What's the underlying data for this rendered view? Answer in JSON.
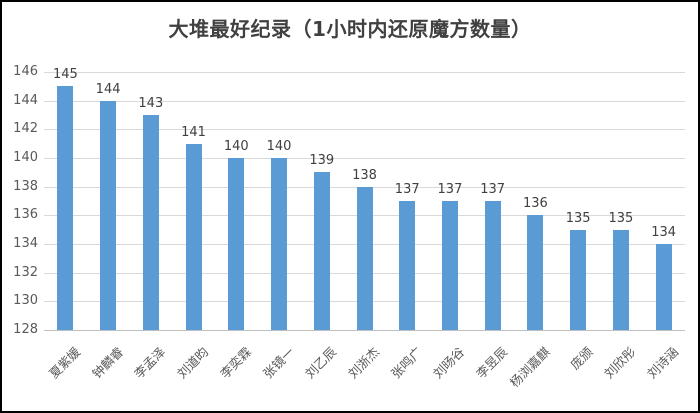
{
  "window": {
    "background": "#ffffff",
    "border_color": "#000000"
  },
  "chart_data": {
    "type": "bar",
    "title": "大堆最好纪录（1小时内还原魔方数量）",
    "categories": [
      "夏紫媛",
      "钟麟睿",
      "李孟泽",
      "刘道昀",
      "李奕霖",
      "张镜一",
      "刘乙辰",
      "刘浙杰",
      "张鸣广",
      "刘旸谷",
      "李昱辰",
      "杨浏嘉麒",
      "庞颁",
      "刘欣彤",
      "刘诗涵"
    ],
    "values": [
      145,
      144,
      143,
      141,
      140,
      140,
      139,
      138,
      137,
      137,
      137,
      136,
      135,
      135,
      134
    ],
    "data_labels": true,
    "xlabel": "",
    "ylabel": "",
    "ylim": [
      128,
      146
    ],
    "yticks": [
      128,
      130,
      132,
      134,
      136,
      138,
      140,
      142,
      144,
      146
    ],
    "grid": "horizontal-only",
    "legend": "none",
    "category_rotation_deg": 45,
    "colors": {
      "bar": "#5b9bd5",
      "gridline": "#d9d9d9",
      "title_text": "#404040",
      "value_label_text": "#404040",
      "axis_tick_text": "#595959"
    }
  }
}
